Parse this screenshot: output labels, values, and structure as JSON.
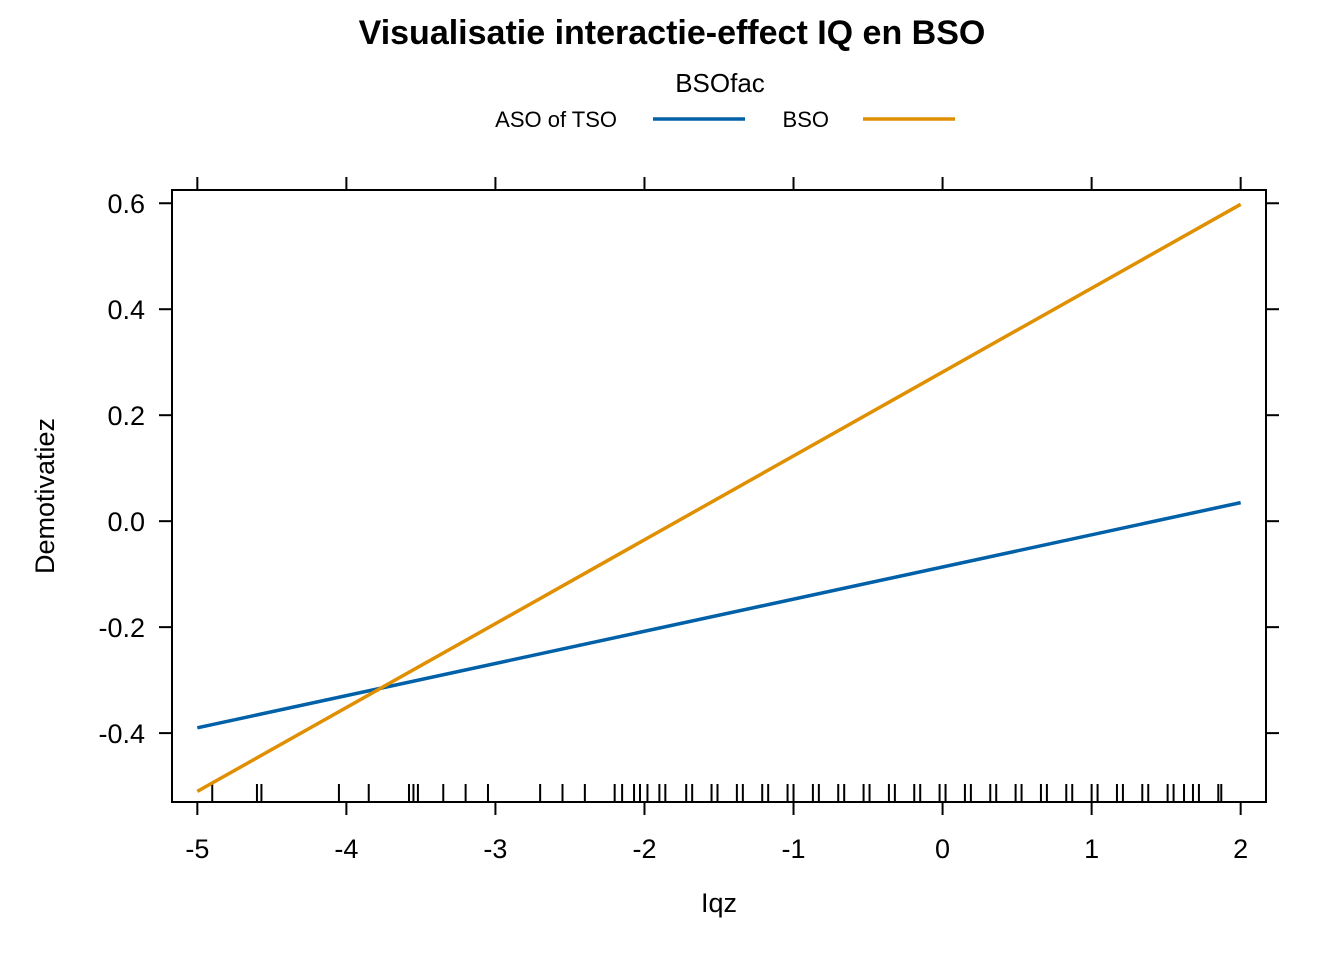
{
  "chart_data": {
    "type": "line",
    "title": "Visualisatie interactie-effect IQ en BSO",
    "xlabel": "Iqz",
    "ylabel": "Demotivatiez",
    "xlim": [
      -5.17,
      2.17
    ],
    "ylim": [
      -0.53,
      0.625
    ],
    "xticks": [
      -5,
      -4,
      -3,
      -2,
      -1,
      0,
      1,
      2
    ],
    "xtick_labels": [
      "-5",
      "-4",
      "-3",
      "-2",
      "-1",
      "0",
      "1",
      "2"
    ],
    "yticks": [
      -0.4,
      -0.2,
      0.0,
      0.2,
      0.4,
      0.6
    ],
    "ytick_labels": [
      "-0.4",
      "-0.2",
      "0.0",
      "0.2",
      "0.4",
      "0.6"
    ],
    "legend": {
      "title": "BSOfac",
      "placement": "top"
    },
    "series": [
      {
        "name": "ASO of TSO",
        "color": "#0060A8",
        "x": [
          -5,
          2
        ],
        "values": [
          -0.39,
          0.035
        ]
      },
      {
        "name": "BSO",
        "color": "#E08F00",
        "x": [
          -5,
          2
        ],
        "values": [
          -0.51,
          0.598
        ]
      }
    ],
    "rug_x": [
      -4.9,
      -4.6,
      -4.57,
      -4.05,
      -3.85,
      -3.58,
      -3.55,
      -3.52,
      -3.35,
      -3.2,
      -3.05,
      -2.7,
      -2.55,
      -2.4,
      -2.2,
      -2.15,
      -2.07,
      -2.03,
      -1.98,
      -1.9,
      -1.86,
      -1.72,
      -1.68,
      -1.55,
      -1.51,
      -1.38,
      -1.34,
      -1.21,
      -1.17,
      -1.04,
      -1.0,
      -0.87,
      -0.83,
      -0.7,
      -0.66,
      -0.53,
      -0.49,
      -0.36,
      -0.32,
      -0.19,
      -0.15,
      -0.02,
      0.02,
      0.15,
      0.19,
      0.32,
      0.36,
      0.49,
      0.53,
      0.66,
      0.7,
      0.83,
      0.87,
      1.0,
      1.04,
      1.17,
      1.21,
      1.34,
      1.38,
      1.51,
      1.55,
      1.62,
      1.68,
      1.72,
      1.85,
      1.87
    ]
  }
}
